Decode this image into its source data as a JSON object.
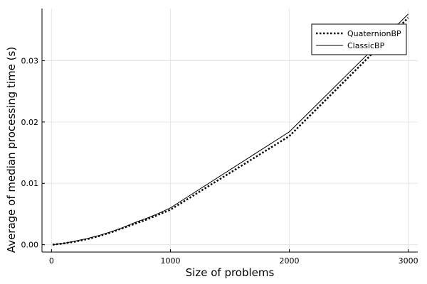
{
  "chart_data": {
    "type": "line",
    "xlabel": "Size of problems",
    "ylabel": "Average of median processing time (s)",
    "xlim": [
      -80,
      3080
    ],
    "ylim": [
      -0.0012,
      0.0385
    ],
    "x_ticks": [
      0,
      1000,
      2000,
      3000
    ],
    "x_tick_labels": [
      "0",
      "1000",
      "2000",
      "3000"
    ],
    "y_ticks": [
      0,
      0.01,
      0.02,
      0.03
    ],
    "y_tick_labels": [
      "0.00",
      "0.01",
      "0.02",
      "0.03"
    ],
    "grid": true,
    "legend_position": "top-right",
    "series": [
      {
        "name": "QuaternionBP",
        "style": "dotted",
        "color": "#000000",
        "x": [
          10,
          100,
          200,
          300,
          400,
          500,
          600,
          700,
          800,
          900,
          1000,
          2000,
          3000
        ],
        "y": [
          0.0,
          0.0002,
          0.0005,
          0.0009,
          0.0014,
          0.002,
          0.0027,
          0.0034,
          0.0041,
          0.0049,
          0.0057,
          0.0177,
          0.037
        ]
      },
      {
        "name": "ClassicBP",
        "style": "solid",
        "color": "#000000",
        "x": [
          10,
          100,
          200,
          300,
          400,
          500,
          600,
          700,
          800,
          900,
          1000,
          2000,
          3000
        ],
        "y": [
          0.0,
          0.0002,
          0.0006,
          0.001,
          0.0015,
          0.0021,
          0.0028,
          0.0036,
          0.0043,
          0.0051,
          0.006,
          0.0184,
          0.0376
        ]
      }
    ]
  }
}
